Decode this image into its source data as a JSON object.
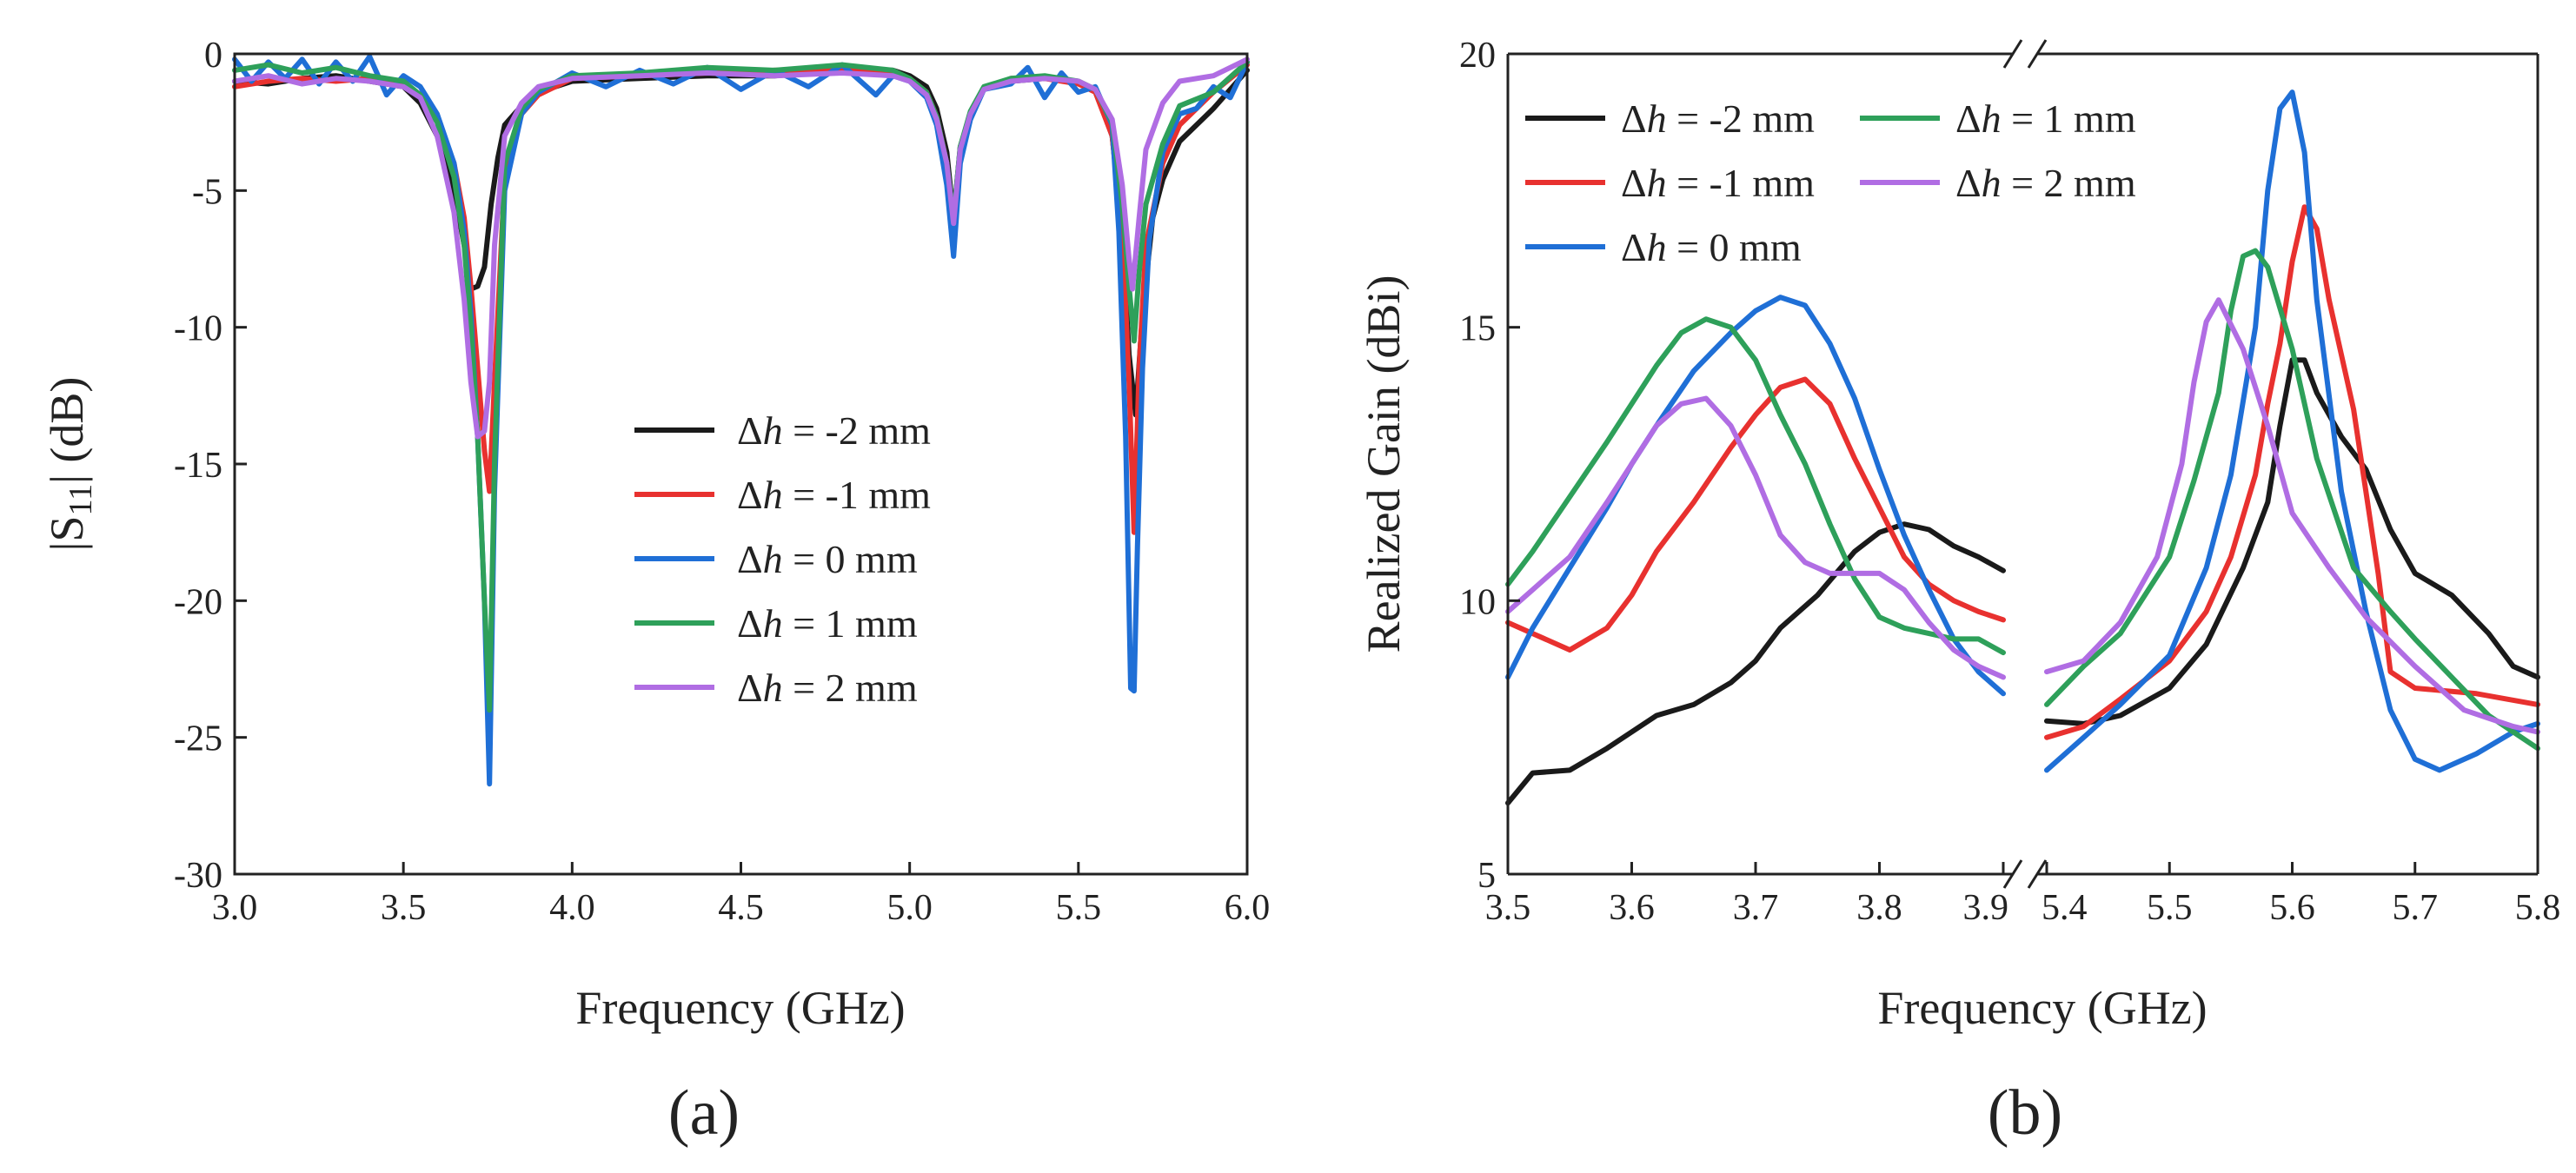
{
  "chart_data": [
    {
      "id": "a",
      "type": "line",
      "panel_label": "(a)",
      "xlabel": "Frequency (GHz)",
      "ylabel": "|S11| (dB)",
      "ylabel_prefix": "|S",
      "ylabel_sub": "11",
      "ylabel_suffix": "| (dB)",
      "xlim": [
        3.0,
        6.0
      ],
      "ylim": [
        -30,
        0
      ],
      "xticks": [
        3.0,
        3.5,
        4.0,
        4.5,
        5.0,
        5.5,
        6.0
      ],
      "xtick_labels": [
        "3.0",
        "3.5",
        "4.0",
        "4.5",
        "5.0",
        "5.5",
        "6.0"
      ],
      "yticks": [
        0,
        -5,
        -10,
        -15,
        -20,
        -25,
        -30
      ],
      "ytick_labels": [
        "0",
        "-5",
        "-10",
        "-15",
        "-20",
        "-25",
        "-30"
      ],
      "legend": {
        "placement": "center-right",
        "entries": [
          "Δh = -2 mm",
          "Δh = -1 mm",
          "Δh = 0 mm",
          "Δh = 1 mm",
          "Δh = 2 mm"
        ]
      },
      "series": [
        {
          "name": "Δh = -2 mm",
          "color": "#1a1a1a",
          "x": [
            3.0,
            3.1,
            3.2,
            3.3,
            3.4,
            3.5,
            3.55,
            3.6,
            3.65,
            3.68,
            3.7,
            3.72,
            3.74,
            3.76,
            3.78,
            3.8,
            3.85,
            3.9,
            4.0,
            4.2,
            4.4,
            4.6,
            4.8,
            4.95,
            5.0,
            5.05,
            5.08,
            5.11,
            5.13,
            5.15,
            5.18,
            5.22,
            5.3,
            5.4,
            5.5,
            5.55,
            5.6,
            5.63,
            5.65,
            5.67,
            5.69,
            5.72,
            5.75,
            5.8,
            5.9,
            6.0
          ],
          "y": [
            -1.0,
            -1.1,
            -0.9,
            -0.8,
            -1.0,
            -1.2,
            -1.8,
            -3.0,
            -5.0,
            -7.0,
            -8.6,
            -8.5,
            -7.8,
            -5.5,
            -3.8,
            -2.6,
            -1.9,
            -1.4,
            -1.0,
            -0.9,
            -0.8,
            -0.8,
            -0.6,
            -0.6,
            -0.8,
            -1.2,
            -2.0,
            -3.6,
            -6.0,
            -3.4,
            -2.2,
            -1.3,
            -1.0,
            -0.9,
            -1.0,
            -1.3,
            -3.0,
            -6.5,
            -11.0,
            -13.2,
            -9.5,
            -6.0,
            -4.6,
            -3.2,
            -2.0,
            -0.6
          ]
        },
        {
          "name": "Δh = -1 mm",
          "color": "#e8312f",
          "x": [
            3.0,
            3.1,
            3.2,
            3.3,
            3.4,
            3.5,
            3.55,
            3.6,
            3.65,
            3.68,
            3.7,
            3.72,
            3.74,
            3.755,
            3.77,
            3.8,
            3.85,
            3.9,
            4.0,
            4.2,
            4.4,
            4.6,
            4.8,
            4.95,
            5.0,
            5.05,
            5.08,
            5.11,
            5.13,
            5.15,
            5.18,
            5.22,
            5.3,
            5.4,
            5.5,
            5.55,
            5.6,
            5.63,
            5.65,
            5.665,
            5.68,
            5.7,
            5.75,
            5.8,
            5.9,
            6.0
          ],
          "y": [
            -1.2,
            -1.0,
            -0.9,
            -1.0,
            -0.9,
            -1.1,
            -1.5,
            -2.4,
            -4.0,
            -6.0,
            -8.5,
            -11.5,
            -14.5,
            -16.0,
            -12.0,
            -4.5,
            -2.2,
            -1.5,
            -0.9,
            -0.8,
            -0.7,
            -0.6,
            -0.6,
            -0.7,
            -0.9,
            -1.4,
            -2.3,
            -4.0,
            -6.8,
            -3.6,
            -2.2,
            -1.3,
            -0.9,
            -0.9,
            -1.1,
            -1.4,
            -3.0,
            -6.5,
            -12.0,
            -17.5,
            -11.5,
            -7.0,
            -4.0,
            -2.6,
            -1.4,
            -0.4
          ]
        },
        {
          "name": "Δh = 0 mm",
          "color": "#1f6fd6",
          "x": [
            3.0,
            3.05,
            3.1,
            3.15,
            3.2,
            3.25,
            3.3,
            3.35,
            3.4,
            3.45,
            3.5,
            3.55,
            3.6,
            3.65,
            3.68,
            3.7,
            3.72,
            3.74,
            3.755,
            3.77,
            3.8,
            3.85,
            3.9,
            4.0,
            4.1,
            4.2,
            4.3,
            4.4,
            4.5,
            4.6,
            4.7,
            4.8,
            4.9,
            4.95,
            5.0,
            5.05,
            5.08,
            5.11,
            5.13,
            5.15,
            5.18,
            5.22,
            5.3,
            5.35,
            5.4,
            5.45,
            5.5,
            5.55,
            5.6,
            5.62,
            5.64,
            5.655,
            5.665,
            5.675,
            5.69,
            5.71,
            5.75,
            5.8,
            5.85,
            5.9,
            5.95,
            6.0
          ],
          "y": [
            -0.2,
            -1.0,
            -0.3,
            -0.9,
            -0.2,
            -1.1,
            -0.3,
            -1.0,
            -0.1,
            -1.5,
            -0.8,
            -1.2,
            -2.2,
            -4.0,
            -6.5,
            -9.5,
            -14.0,
            -20.0,
            -26.7,
            -16.0,
            -5.0,
            -2.2,
            -1.4,
            -0.7,
            -1.2,
            -0.6,
            -1.1,
            -0.5,
            -1.3,
            -0.6,
            -1.2,
            -0.4,
            -1.5,
            -0.8,
            -1.0,
            -1.6,
            -2.6,
            -4.8,
            -7.4,
            -4.0,
            -2.4,
            -1.3,
            -1.1,
            -0.5,
            -1.6,
            -0.7,
            -1.4,
            -1.2,
            -2.6,
            -6.5,
            -14.0,
            -23.2,
            -23.3,
            -18.0,
            -11.5,
            -6.8,
            -3.6,
            -2.2,
            -2.0,
            -1.2,
            -1.6,
            -0.3
          ]
        },
        {
          "name": "Δh = 1 mm",
          "color": "#2ea05a",
          "x": [
            3.0,
            3.1,
            3.2,
            3.3,
            3.4,
            3.5,
            3.55,
            3.6,
            3.65,
            3.68,
            3.7,
            3.72,
            3.74,
            3.755,
            3.77,
            3.8,
            3.85,
            3.9,
            4.0,
            4.2,
            4.4,
            4.6,
            4.8,
            4.95,
            5.0,
            5.05,
            5.08,
            5.11,
            5.13,
            5.15,
            5.18,
            5.22,
            5.3,
            5.4,
            5.5,
            5.55,
            5.6,
            5.63,
            5.65,
            5.665,
            5.68,
            5.7,
            5.75,
            5.8,
            5.9,
            6.0
          ],
          "y": [
            -0.6,
            -0.4,
            -0.7,
            -0.5,
            -0.8,
            -1.0,
            -1.5,
            -2.5,
            -4.5,
            -7.0,
            -10.0,
            -14.0,
            -20.0,
            -24.0,
            -15.0,
            -4.0,
            -2.0,
            -1.3,
            -0.8,
            -0.7,
            -0.5,
            -0.6,
            -0.4,
            -0.6,
            -0.9,
            -1.4,
            -2.3,
            -4.0,
            -6.0,
            -3.4,
            -2.1,
            -1.2,
            -0.9,
            -0.8,
            -1.0,
            -1.3,
            -2.5,
            -5.5,
            -8.5,
            -10.5,
            -8.0,
            -5.5,
            -3.3,
            -1.9,
            -1.4,
            -0.3
          ]
        },
        {
          "name": "Δh = 2 mm",
          "color": "#b06de3",
          "x": [
            3.0,
            3.1,
            3.2,
            3.3,
            3.4,
            3.5,
            3.55,
            3.6,
            3.65,
            3.68,
            3.7,
            3.72,
            3.74,
            3.755,
            3.77,
            3.8,
            3.85,
            3.9,
            4.0,
            4.2,
            4.4,
            4.6,
            4.8,
            4.95,
            5.0,
            5.05,
            5.08,
            5.11,
            5.13,
            5.15,
            5.18,
            5.22,
            5.3,
            5.4,
            5.5,
            5.55,
            5.6,
            5.63,
            5.65,
            5.66,
            5.68,
            5.7,
            5.75,
            5.8,
            5.9,
            6.0
          ],
          "y": [
            -1.0,
            -0.8,
            -1.1,
            -0.9,
            -1.0,
            -1.2,
            -1.6,
            -3.0,
            -5.8,
            -9.0,
            -12.0,
            -14.0,
            -13.8,
            -12.0,
            -7.0,
            -3.0,
            -1.8,
            -1.2,
            -0.9,
            -0.8,
            -0.7,
            -0.8,
            -0.7,
            -0.8,
            -1.0,
            -1.5,
            -2.4,
            -4.0,
            -6.2,
            -3.5,
            -2.2,
            -1.3,
            -1.0,
            -0.9,
            -1.0,
            -1.3,
            -2.4,
            -4.8,
            -7.5,
            -8.6,
            -6.0,
            -3.5,
            -1.8,
            -1.0,
            -0.8,
            -0.2
          ]
        }
      ]
    },
    {
      "id": "b",
      "type": "line",
      "panel_label": "(b)",
      "xlabel": "Frequency (GHz)",
      "ylabel": "Realized Gain (dBi)",
      "ylim": [
        5,
        20
      ],
      "yticks": [
        5,
        10,
        15,
        20
      ],
      "ytick_labels": [
        "5",
        "10",
        "15",
        "20"
      ],
      "broken_x_axis": true,
      "segments": [
        {
          "xlim": [
            3.5,
            3.9
          ],
          "xticks": [
            3.5,
            3.6,
            3.7,
            3.8,
            3.9
          ],
          "xtick_labels": [
            "3.5",
            "3.6",
            "3.7",
            "3.8",
            "3.9"
          ]
        },
        {
          "xlim": [
            5.4,
            5.8
          ],
          "xticks": [
            5.4,
            5.5,
            5.6,
            5.7,
            5.8
          ],
          "xtick_labels": [
            "5.4",
            "5.5",
            "5.6",
            "5.7",
            "5.8"
          ]
        }
      ],
      "legend": {
        "placement": "top-left",
        "entries": [
          "Δh = -2 mm",
          "Δh = 1 mm",
          "Δh = -1 mm",
          "Δh = 2 mm",
          "Δh = 0 mm"
        ]
      },
      "series": [
        {
          "name": "Δh = -2 mm",
          "color": "#1a1a1a",
          "x1": [
            3.5,
            3.52,
            3.55,
            3.58,
            3.6,
            3.62,
            3.65,
            3.68,
            3.7,
            3.72,
            3.75,
            3.78,
            3.8,
            3.82,
            3.84,
            3.86,
            3.88,
            3.9
          ],
          "y1": [
            6.3,
            6.85,
            6.9,
            7.3,
            7.6,
            7.9,
            8.1,
            8.5,
            8.9,
            9.5,
            10.1,
            10.9,
            11.25,
            11.4,
            11.3,
            11.0,
            10.8,
            10.55
          ],
          "x2": [
            5.4,
            5.43,
            5.46,
            5.5,
            5.53,
            5.56,
            5.58,
            5.59,
            5.6,
            5.61,
            5.62,
            5.64,
            5.66,
            5.68,
            5.7,
            5.73,
            5.76,
            5.78,
            5.8
          ],
          "y2": [
            7.8,
            7.75,
            7.9,
            8.4,
            9.2,
            10.6,
            11.8,
            13.2,
            14.4,
            14.4,
            13.8,
            13.0,
            12.4,
            11.3,
            10.5,
            10.1,
            9.4,
            8.8,
            8.6
          ]
        },
        {
          "name": "Δh = -1 mm",
          "color": "#e8312f",
          "x1": [
            3.5,
            3.52,
            3.55,
            3.58,
            3.6,
            3.62,
            3.65,
            3.68,
            3.7,
            3.72,
            3.74,
            3.76,
            3.78,
            3.8,
            3.82,
            3.84,
            3.86,
            3.88,
            3.9
          ],
          "y1": [
            9.6,
            9.4,
            9.1,
            9.5,
            10.1,
            10.9,
            11.8,
            12.8,
            13.4,
            13.9,
            14.05,
            13.6,
            12.6,
            11.7,
            10.8,
            10.3,
            10.0,
            9.8,
            9.65
          ],
          "x2": [
            5.4,
            5.43,
            5.46,
            5.5,
            5.53,
            5.55,
            5.57,
            5.58,
            5.59,
            5.6,
            5.61,
            5.62,
            5.63,
            5.65,
            5.67,
            5.68,
            5.7,
            5.75,
            5.8
          ],
          "y2": [
            7.5,
            7.7,
            8.2,
            8.9,
            9.8,
            10.8,
            12.3,
            13.6,
            14.7,
            16.2,
            17.2,
            16.8,
            15.5,
            13.5,
            10.5,
            8.7,
            8.4,
            8.3,
            8.1
          ]
        },
        {
          "name": "Δh = 0 mm",
          "color": "#1f6fd6",
          "x1": [
            3.5,
            3.52,
            3.55,
            3.58,
            3.6,
            3.62,
            3.65,
            3.68,
            3.7,
            3.72,
            3.74,
            3.76,
            3.78,
            3.8,
            3.82,
            3.84,
            3.86,
            3.88,
            3.9
          ],
          "y1": [
            8.6,
            9.5,
            10.6,
            11.7,
            12.5,
            13.2,
            14.2,
            14.9,
            15.3,
            15.55,
            15.4,
            14.7,
            13.7,
            12.4,
            11.2,
            10.2,
            9.3,
            8.7,
            8.3
          ],
          "x2": [
            5.4,
            5.43,
            5.46,
            5.5,
            5.53,
            5.55,
            5.57,
            5.58,
            5.59,
            5.6,
            5.61,
            5.62,
            5.64,
            5.66,
            5.68,
            5.7,
            5.72,
            5.75,
            5.78,
            5.8
          ],
          "y2": [
            6.9,
            7.5,
            8.1,
            9.0,
            10.6,
            12.3,
            15.0,
            17.5,
            19.0,
            19.3,
            18.2,
            15.5,
            12.0,
            9.8,
            8.0,
            7.1,
            6.9,
            7.2,
            7.6,
            7.75
          ]
        },
        {
          "name": "Δh = 1 mm",
          "color": "#2ea05a",
          "x1": [
            3.5,
            3.52,
            3.55,
            3.58,
            3.6,
            3.62,
            3.64,
            3.66,
            3.68,
            3.7,
            3.72,
            3.74,
            3.76,
            3.78,
            3.8,
            3.82,
            3.84,
            3.86,
            3.88,
            3.9
          ],
          "y1": [
            10.3,
            10.9,
            11.9,
            12.9,
            13.6,
            14.3,
            14.9,
            15.15,
            15.0,
            14.4,
            13.4,
            12.5,
            11.4,
            10.4,
            9.7,
            9.5,
            9.4,
            9.3,
            9.3,
            9.05
          ],
          "x2": [
            5.4,
            5.43,
            5.46,
            5.5,
            5.52,
            5.54,
            5.55,
            5.56,
            5.57,
            5.58,
            5.6,
            5.62,
            5.65,
            5.68,
            5.7,
            5.73,
            5.76,
            5.8
          ],
          "y2": [
            8.1,
            8.8,
            9.4,
            10.8,
            12.2,
            13.8,
            15.3,
            16.3,
            16.4,
            16.1,
            14.6,
            12.6,
            10.6,
            9.8,
            9.3,
            8.6,
            7.9,
            7.3
          ]
        },
        {
          "name": "Δh = 2 mm",
          "color": "#b06de3",
          "x1": [
            3.5,
            3.52,
            3.55,
            3.58,
            3.6,
            3.62,
            3.64,
            3.66,
            3.68,
            3.7,
            3.72,
            3.74,
            3.76,
            3.78,
            3.8,
            3.82,
            3.84,
            3.86,
            3.88,
            3.9
          ],
          "y1": [
            9.8,
            10.2,
            10.8,
            11.8,
            12.5,
            13.2,
            13.6,
            13.7,
            13.2,
            12.3,
            11.2,
            10.7,
            10.5,
            10.5,
            10.5,
            10.2,
            9.6,
            9.1,
            8.8,
            8.6
          ],
          "x2": [
            5.4,
            5.43,
            5.46,
            5.49,
            5.51,
            5.52,
            5.53,
            5.54,
            5.56,
            5.58,
            5.6,
            5.63,
            5.66,
            5.7,
            5.74,
            5.78,
            5.8
          ],
          "y2": [
            8.7,
            8.9,
            9.6,
            10.8,
            12.5,
            14.0,
            15.1,
            15.5,
            14.6,
            13.2,
            11.6,
            10.6,
            9.7,
            8.8,
            8.0,
            7.7,
            7.6
          ]
        }
      ]
    }
  ]
}
